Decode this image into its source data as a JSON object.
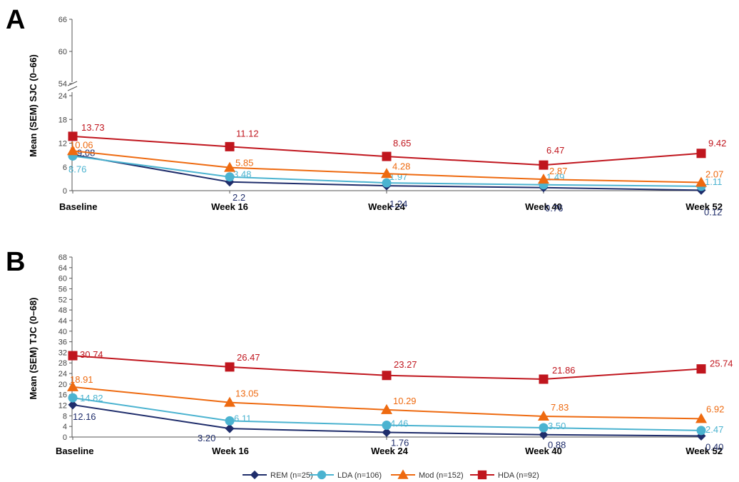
{
  "chart_data": [
    {
      "type": "line",
      "panel_label": "A",
      "ylabel": "Mean (SEM) SJC (0–66)",
      "categories": [
        "Baseline",
        "Week 16",
        "Week 24",
        "Week 40",
        "Week 52"
      ],
      "y_axis": {
        "broken": true,
        "lower_segment": {
          "range": [
            0,
            24
          ],
          "ticks": [
            "0",
            "6",
            "12",
            "18",
            "24"
          ]
        },
        "upper_segment": {
          "range": [
            54,
            66
          ],
          "ticks": [
            "54",
            "60",
            "66"
          ]
        }
      },
      "series": [
        {
          "name": "REM (n=25)",
          "marker": "diamond",
          "color": "#1f2d6b",
          "values": [
            9.08,
            2.2,
            1.24,
            0.76,
            0.12
          ],
          "labels": [
            "9.08",
            "2.2",
            "1.24",
            "0.76",
            "0.12"
          ]
        },
        {
          "name": "LDA (n=106)",
          "marker": "circle",
          "color": "#4bb3d0",
          "values": [
            8.76,
            3.48,
            1.97,
            1.49,
            1.11
          ],
          "labels": [
            "8.76",
            "3.48",
            "1.97",
            "1.49",
            "1.11"
          ]
        },
        {
          "name": "Mod (n=152)",
          "marker": "triangle",
          "color": "#ee6a10",
          "values": [
            10.06,
            5.85,
            4.28,
            2.87,
            2.07
          ],
          "labels": [
            "10.06",
            "5.85",
            "4.28",
            "2.87",
            "2.07"
          ]
        },
        {
          "name": "HDA (n=92)",
          "marker": "square",
          "color": "#c0161e",
          "values": [
            13.73,
            11.12,
            8.65,
            6.47,
            9.42
          ],
          "labels": [
            "13.73",
            "11.12",
            "8.65",
            "6.47",
            "9.42"
          ]
        }
      ]
    },
    {
      "type": "line",
      "panel_label": "B",
      "ylabel": "Mean (SEM) TJC (0–68)",
      "categories": [
        "Baseline",
        "Week 16",
        "Week 24",
        "Week 40",
        "Week 52"
      ],
      "y_axis": {
        "range": [
          0,
          68
        ],
        "ticks": [
          "0",
          "4",
          "8",
          "12",
          "16",
          "20",
          "24",
          "28",
          "32",
          "36",
          "40",
          "44",
          "48",
          "52",
          "56",
          "60",
          "64",
          "68"
        ]
      },
      "series": [
        {
          "name": "REM (n=25)",
          "marker": "diamond",
          "color": "#1f2d6b",
          "values": [
            12.16,
            3.2,
            1.76,
            0.88,
            0.4
          ],
          "labels": [
            "12.16",
            "3.20",
            "1.76",
            "0.88",
            "0.40"
          ]
        },
        {
          "name": "LDA (n=106)",
          "marker": "circle",
          "color": "#4bb3d0",
          "values": [
            14.82,
            6.11,
            4.46,
            3.5,
            2.47
          ],
          "labels": [
            "14.82",
            "6.11",
            "4.46",
            "3.50",
            "2.47"
          ]
        },
        {
          "name": "Mod (n=152)",
          "marker": "triangle",
          "color": "#ee6a10",
          "values": [
            18.91,
            13.05,
            10.29,
            7.83,
            6.92
          ],
          "labels": [
            "18.91",
            "13.05",
            "10.29",
            "7.83",
            "6.92"
          ]
        },
        {
          "name": "HDA (n=92)",
          "marker": "square",
          "color": "#c0161e",
          "values": [
            30.74,
            26.47,
            23.27,
            21.86,
            25.74
          ],
          "labels": [
            "30.74",
            "26.47",
            "23.27",
            "21.86",
            "25.74"
          ]
        }
      ]
    }
  ],
  "legend": {
    "placement": "bottom-center",
    "items": [
      {
        "label": "REM (n=25)",
        "marker": "diamond",
        "color": "#1f2d6b"
      },
      {
        "label": "LDA (n=106)",
        "marker": "circle",
        "color": "#4bb3d0"
      },
      {
        "label": "Mod (n=152)",
        "marker": "triangle",
        "color": "#ee6a10"
      },
      {
        "label": "HDA (n=92)",
        "marker": "square",
        "color": "#c0161e"
      }
    ]
  }
}
